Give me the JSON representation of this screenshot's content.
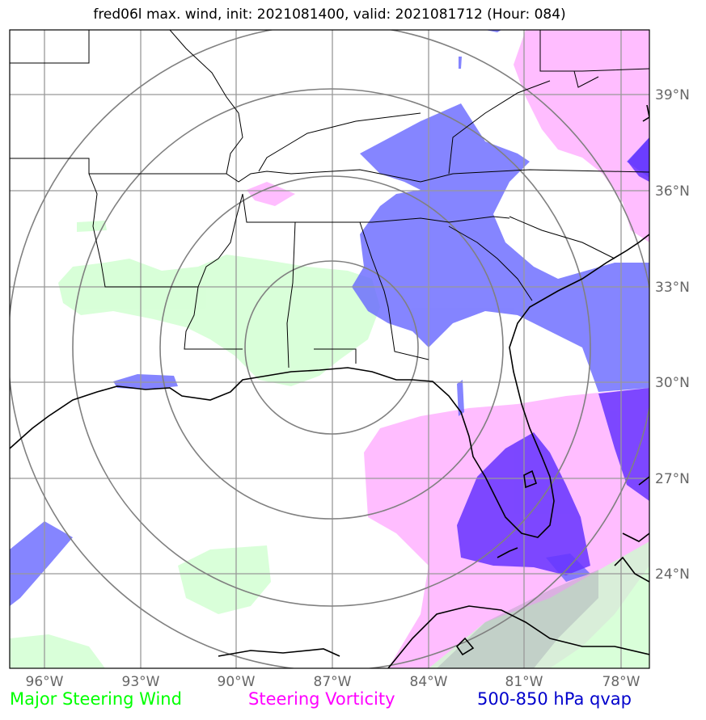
{
  "title": "fred06l max. wind, init: 2021081400, valid: 2021081712 (Hour: 084)",
  "lon_labels": [
    "96°W",
    "93°W",
    "90°W",
    "87°W",
    "84°W",
    "81°W",
    "78°W"
  ],
  "lat_labels": [
    "39°N",
    "36°N",
    "33°N",
    "30°N",
    "27°N",
    "24°N"
  ],
  "legend": {
    "wind": "Major Steering Wind",
    "vorticity": "Steering Vorticity",
    "qvap": "500-850 hPa qvap"
  },
  "colors": {
    "wind_fill": "#ccffcc",
    "vorticity_fill": "#ff99ff",
    "qvap_fill": "#6666ff",
    "qvap_strong": "#6633ff",
    "grid": "#999999",
    "rings": "#808080"
  },
  "map": {
    "lon_range": [
      -97,
      -77
    ],
    "lat_range": [
      21,
      41
    ],
    "center": {
      "lon": -87,
      "lat": 30.5
    },
    "ring_radii_deg": [
      3,
      5,
      7,
      9
    ]
  }
}
